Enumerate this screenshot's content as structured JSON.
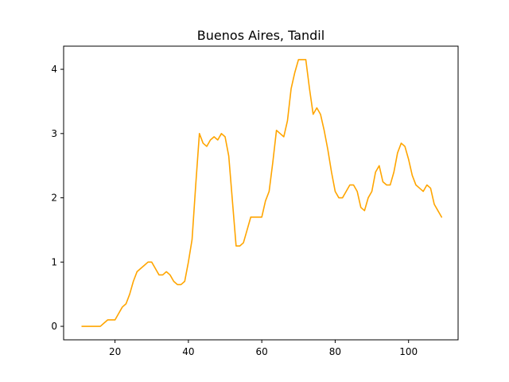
{
  "chart_data": {
    "type": "line",
    "title": "Buenos Aires, Tandil",
    "xlabel": "",
    "ylabel": "",
    "xlim": [
      6,
      113.5
    ],
    "ylim": [
      -0.21,
      4.36
    ],
    "xticks": [
      20,
      40,
      60,
      80,
      100
    ],
    "yticks": [
      0,
      1,
      2,
      3,
      4
    ],
    "grid": false,
    "legend": "none",
    "series": [
      {
        "color": "#ffa500",
        "x": [
          11,
          12,
          13,
          14,
          15,
          16,
          17,
          18,
          19,
          20,
          21,
          22,
          23,
          24,
          25,
          26,
          27,
          28,
          29,
          30,
          31,
          32,
          33,
          34,
          35,
          36,
          37,
          38,
          39,
          40,
          41,
          42,
          43,
          44,
          45,
          46,
          47,
          48,
          49,
          50,
          51,
          52,
          53,
          54,
          55,
          56,
          57,
          58,
          59,
          60,
          61,
          62,
          63,
          64,
          65,
          66,
          67,
          68,
          69,
          70,
          71,
          72,
          73,
          74,
          75,
          76,
          77,
          78,
          79,
          80,
          81,
          82,
          83,
          84,
          85,
          86,
          87,
          88,
          89,
          90,
          91,
          92,
          93,
          94,
          95,
          96,
          97,
          98,
          99,
          100,
          101,
          102,
          103,
          104,
          105,
          106,
          107,
          108,
          109
        ],
        "y": [
          0,
          0,
          0,
          0,
          0,
          0,
          0.05,
          0.1,
          0.1,
          0.1,
          0.2,
          0.3,
          0.35,
          0.5,
          0.7,
          0.85,
          0.9,
          0.95,
          1.0,
          1.0,
          0.9,
          0.8,
          0.8,
          0.85,
          0.8,
          0.7,
          0.65,
          0.65,
          0.7,
          1.0,
          1.35,
          2.2,
          3.0,
          2.85,
          2.8,
          2.9,
          2.95,
          2.9,
          3.0,
          2.95,
          2.65,
          1.95,
          1.25,
          1.25,
          1.3,
          1.5,
          1.7,
          1.7,
          1.7,
          1.7,
          1.95,
          2.1,
          2.55,
          3.05,
          3.0,
          2.95,
          3.2,
          3.7,
          3.95,
          4.15,
          4.15,
          4.15,
          3.7,
          3.3,
          3.4,
          3.3,
          3.05,
          2.75,
          2.4,
          2.1,
          2.0,
          2.0,
          2.1,
          2.2,
          2.2,
          2.1,
          1.85,
          1.8,
          2.0,
          2.1,
          2.4,
          2.5,
          2.25,
          2.2,
          2.2,
          2.4,
          2.7,
          2.85,
          2.8,
          2.6,
          2.35,
          2.2,
          2.15,
          2.1,
          2.2,
          2.15,
          1.9,
          1.8,
          1.7
        ]
      }
    ]
  }
}
